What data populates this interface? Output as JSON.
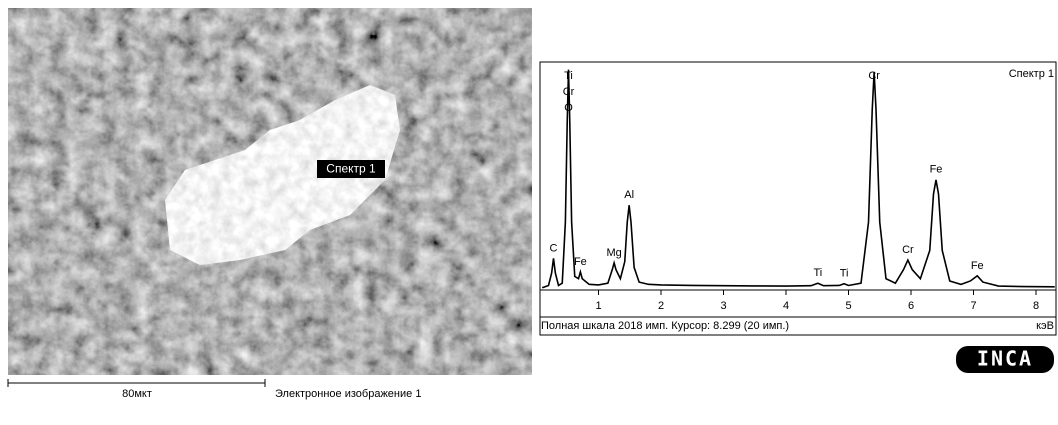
{
  "image_panel": {
    "marker_label": "Спектр 1",
    "scale_label": "80мкт",
    "caption": "Электронное изображение 1"
  },
  "chart_data": {
    "type": "line",
    "title": "Спектр 1",
    "x": [
      0.1,
      0.2,
      0.25,
      0.28,
      0.31,
      0.36,
      0.42,
      0.47,
      0.5,
      0.52,
      0.54,
      0.57,
      0.62,
      0.68,
      0.71,
      0.74,
      0.85,
      1.0,
      1.15,
      1.22,
      1.25,
      1.28,
      1.35,
      1.42,
      1.46,
      1.49,
      1.52,
      1.57,
      1.65,
      1.8,
      2.0,
      2.5,
      3.0,
      3.5,
      4.0,
      4.4,
      4.51,
      4.6,
      4.85,
      4.93,
      5.0,
      5.2,
      5.32,
      5.38,
      5.41,
      5.44,
      5.5,
      5.6,
      5.75,
      5.88,
      5.95,
      6.02,
      6.15,
      6.3,
      6.36,
      6.4,
      6.44,
      6.5,
      6.62,
      6.8,
      6.95,
      7.06,
      7.15,
      7.4,
      7.8,
      8.3
    ],
    "values": [
      20,
      40,
      150,
      280,
      150,
      40,
      60,
      600,
      1500,
      1950,
      1500,
      600,
      120,
      100,
      160,
      100,
      50,
      45,
      60,
      180,
      240,
      180,
      100,
      250,
      600,
      750,
      600,
      200,
      70,
      50,
      45,
      40,
      38,
      36,
      35,
      38,
      60,
      38,
      40,
      55,
      40,
      60,
      600,
      1600,
      1930,
      1600,
      600,
      100,
      60,
      180,
      265,
      180,
      100,
      350,
      850,
      975,
      850,
      350,
      80,
      50,
      80,
      125,
      70,
      35,
      30,
      28
    ],
    "color": "#000000",
    "xlim": [
      0,
      8.3
    ],
    "ylim": [
      0,
      2018
    ],
    "xticks": [
      1,
      2,
      3,
      4,
      5,
      6,
      7,
      8
    ],
    "x_unit": "кэВ",
    "footer": "Полная шкала 2018 имп. Курсор: 8.299 (20 имп.)",
    "annotations": [
      {
        "text": "C",
        "x": 0.28
      },
      {
        "text": "Ti",
        "x": 0.52
      },
      {
        "text": "Cr",
        "x": 0.52
      },
      {
        "text": "O",
        "x": 0.52
      },
      {
        "text": "Fe",
        "x": 0.71
      },
      {
        "text": "Mg",
        "x": 1.25
      },
      {
        "text": "Al",
        "x": 1.49
      },
      {
        "text": "Ti",
        "x": 4.51
      },
      {
        "text": "Ti",
        "x": 4.93
      },
      {
        "text": "Cr",
        "x": 5.41
      },
      {
        "text": "Cr",
        "x": 5.95
      },
      {
        "text": "Fe",
        "x": 6.4
      },
      {
        "text": "Fe",
        "x": 7.06
      }
    ]
  },
  "logo": "INCA"
}
